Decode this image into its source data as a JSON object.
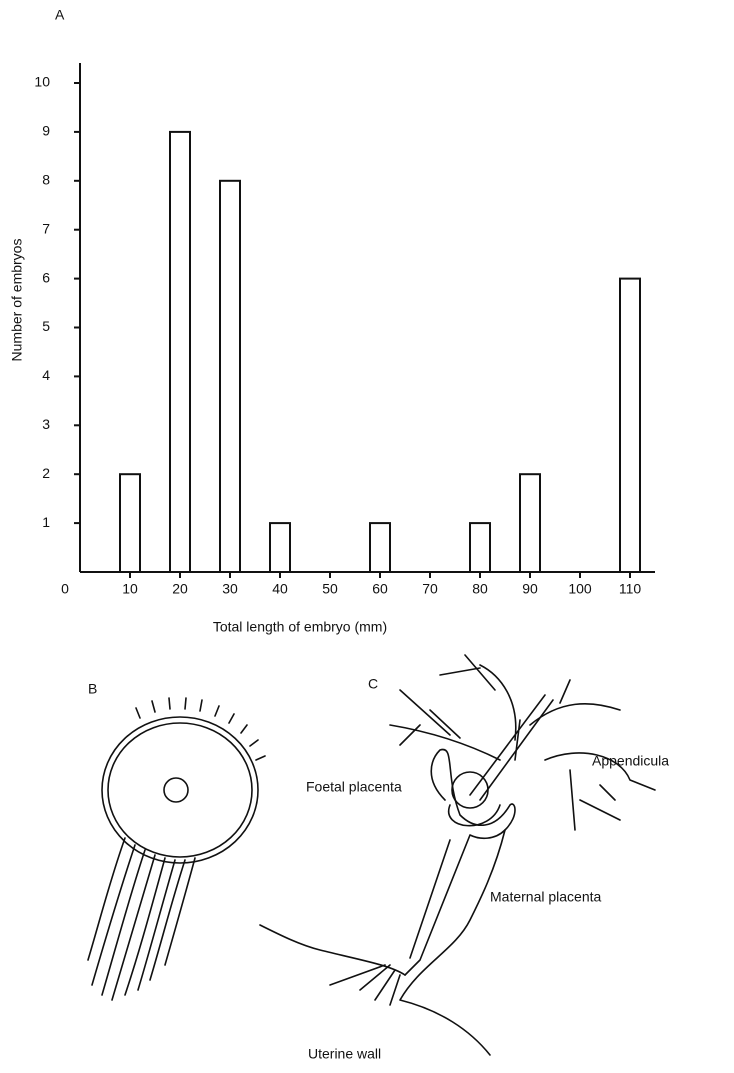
{
  "chart_data": {
    "type": "bar",
    "title": "A",
    "x": [
      10,
      20,
      30,
      40,
      60,
      80,
      90,
      110
    ],
    "values": [
      2,
      9,
      8,
      1,
      1,
      1,
      2,
      6
    ],
    "color": "#ffffff",
    "xlabel": "Total length of embryo (mm)",
    "ylabel": "Number of embryos",
    "xlim": [
      0,
      115
    ],
    "xticks": [
      0,
      10,
      20,
      30,
      40,
      50,
      60,
      70,
      80,
      90,
      100,
      110
    ],
    "ylim": [
      0,
      10
    ],
    "yticks": [
      1,
      2,
      3,
      4,
      5,
      6,
      7,
      8,
      9,
      10
    ],
    "grid": false
  },
  "figure": {
    "panel_b": "B",
    "panel_c": "C",
    "labels": [
      "Foetal placenta",
      "Appendicula",
      "Maternal placenta",
      "Uterine wall"
    ]
  }
}
